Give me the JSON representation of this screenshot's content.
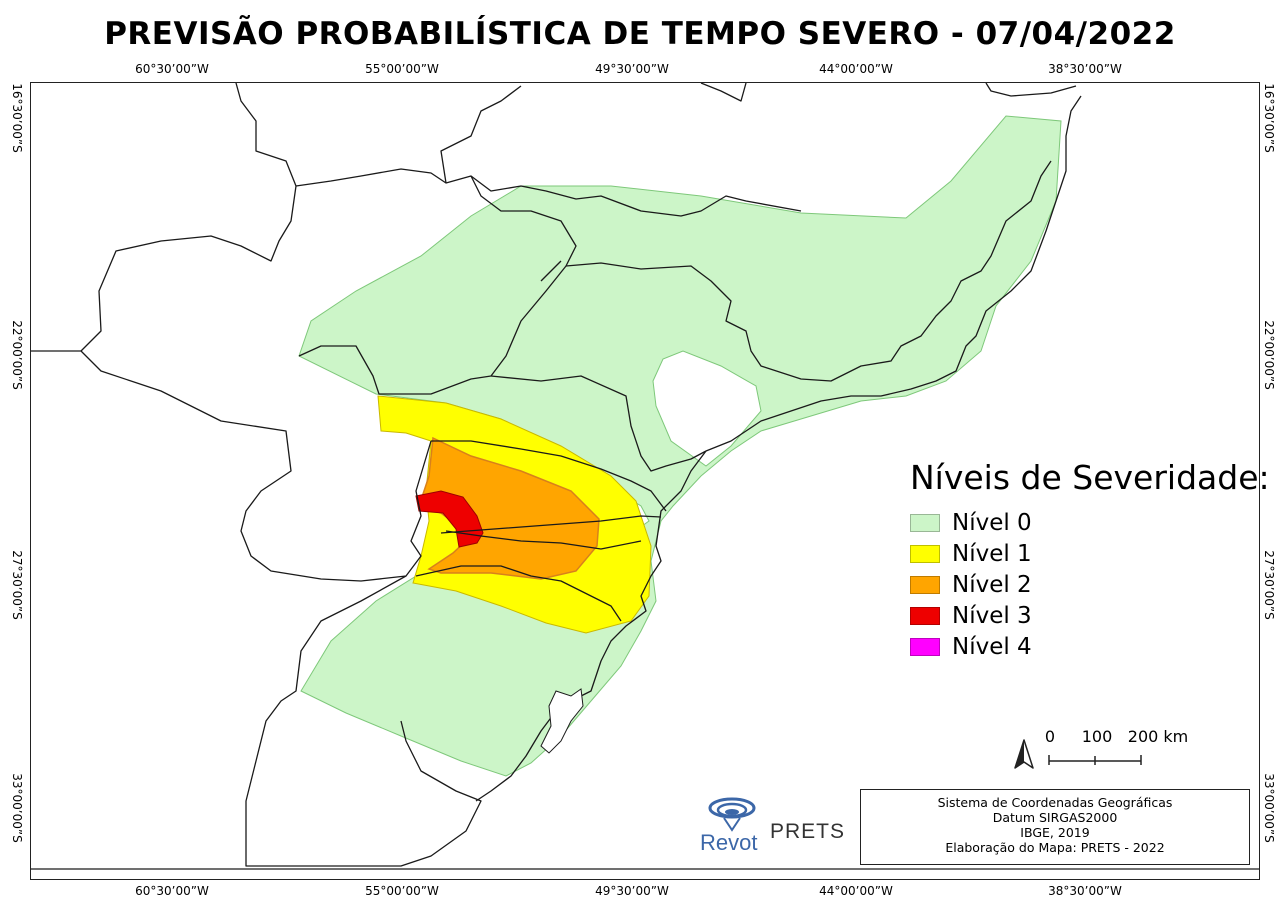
{
  "title": "PREVISÃO PROBABILÍSTICA DE TEMPO SEVERO - 07/04/2022",
  "axis_ticks": {
    "longitude": [
      "60°30’00”W",
      "55°00’00”W",
      "49°30’00”W",
      "44°00’00”W",
      "38°30’00”W"
    ],
    "latitude": [
      "16°30’00”S",
      "22°00’00”S",
      "27°30’00”S",
      "33°00’00”S"
    ]
  },
  "legend": {
    "title": "Níveis de Severidade:",
    "items": [
      {
        "label": "Nível 0",
        "color": "#ccf5c8"
      },
      {
        "label": "Nível 1",
        "color": "#ffff00"
      },
      {
        "label": "Nível 2",
        "color": "#ffa500"
      },
      {
        "label": "Nível 3",
        "color": "#ee0000"
      },
      {
        "label": "Nível 4",
        "color": "#ff00ff"
      }
    ]
  },
  "scale_bar": {
    "labels": [
      "0",
      "100",
      "200 km"
    ]
  },
  "north_arrow": "north-arrow-icon",
  "credits": {
    "lines": [
      "Sistema de Coordenadas Geográficas",
      "Datum SIRGAS2000",
      "IBGE, 2019",
      "Elaboração do Mapa: PRETS - 2022"
    ]
  },
  "logos": {
    "revot": "Revot",
    "prets": "PRETS"
  },
  "colors": {
    "level0": "#ccf5c8",
    "level0_edge": "#7ec87a",
    "level1": "#ffff00",
    "level2": "#ffa500",
    "level3": "#ee0000",
    "level4": "#ff00ff",
    "boundaries": "#1a1a1a",
    "revot_blue": "#3c67a8"
  }
}
